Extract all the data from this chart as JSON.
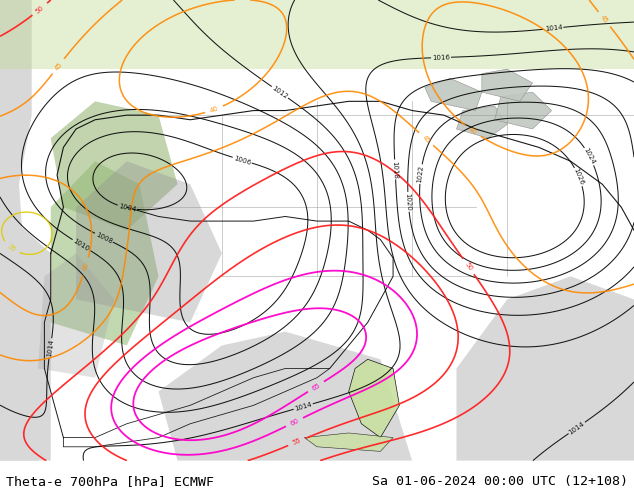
{
  "title_left": "Theta-e 700hPa [hPa] ECMWF",
  "title_right": "Sa 01-06-2024 00:00 UTC (12+108)",
  "title_fontsize": 9.5,
  "title_color": "#000000",
  "background_color": "#ffffff",
  "fig_width": 6.34,
  "fig_height": 4.9,
  "dpi": 100,
  "land_green": "#b8d898",
  "land_green2": "#c8e0a0",
  "ocean_gray": "#d8d8d8",
  "mountain_gray": "#b8b8b8",
  "black": "#000000",
  "yellow_color": "#cccc00",
  "orange_color": "#ff8800",
  "red_color": "#ff2020",
  "pink_color": "#ff00cc",
  "lgreen_color": "#88cc00",
  "gray_border": "#888888"
}
